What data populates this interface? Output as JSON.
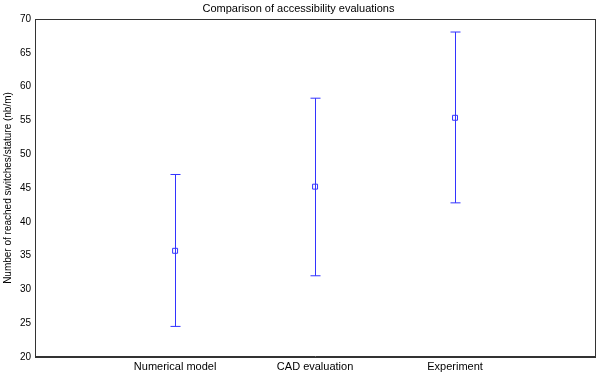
{
  "chart_data": {
    "type": "scatter",
    "title": "Comparison of accessibility evaluations",
    "y_label": "Number of reached switches/stature (nb/m)",
    "categories": [
      null,
      "Numerical model",
      "CAD evaluation",
      "Experiment",
      null
    ],
    "values": [
      null,
      35.7,
      45.2,
      55.4,
      null
    ],
    "lower": [
      null,
      24.5,
      32.0,
      42.8,
      null
    ],
    "upper": [
      null,
      47.0,
      58.3,
      68.1,
      null
    ],
    "color": "#3333ff",
    "marker": "square",
    "ylim": [
      20,
      70
    ],
    "yticks": [
      20,
      25,
      30,
      35,
      40,
      45,
      50,
      55,
      60,
      65,
      70
    ],
    "grid": false
  }
}
